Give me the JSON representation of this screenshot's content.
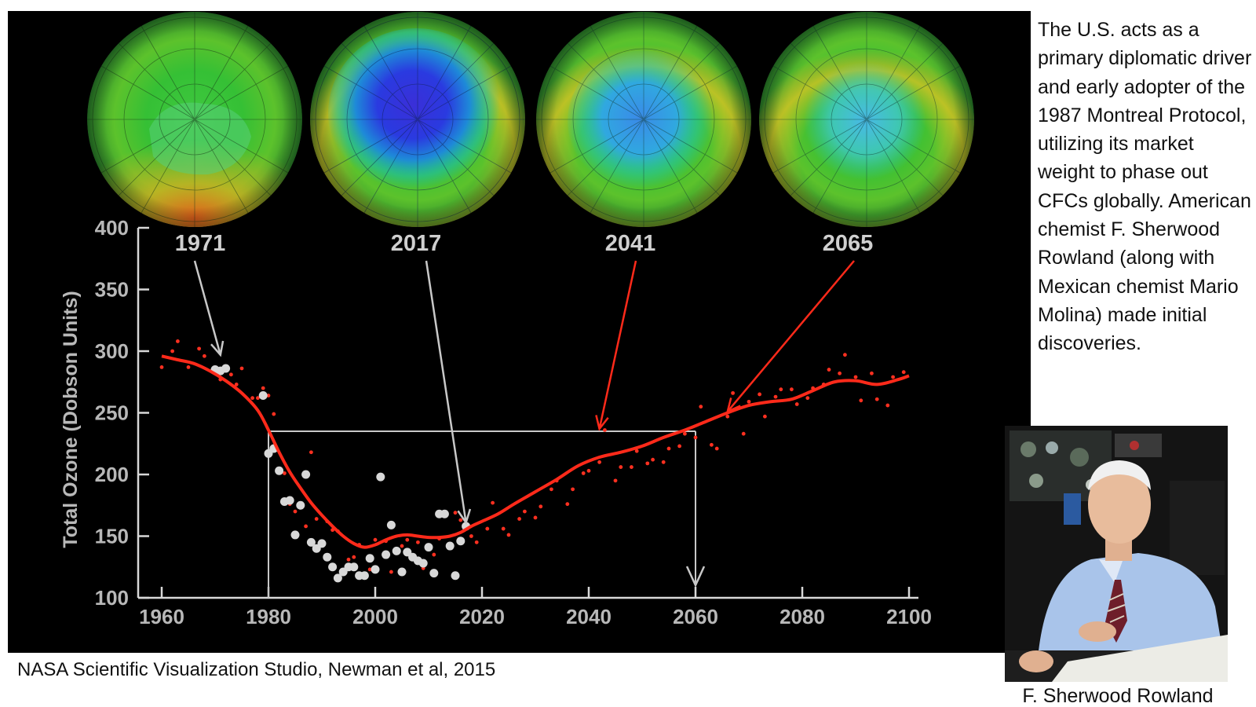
{
  "side_text": "The U.S. acts as a primary diplomatic driver and early adopter of the 1987 Montreal Protocol, utilizing its market weight to phase out CFCs globally. American chemist F. Sherwood Rowland (along with Mexican chemist Mario Molina) made initial discoveries.",
  "credit": "NASA Scientific Visualization Studio, Newman et al, 2015",
  "photo_caption": "F. Sherwood Rowland",
  "globes": [
    {
      "year": "1971",
      "hole": "none"
    },
    {
      "year": "2017",
      "hole": "deep"
    },
    {
      "year": "2041",
      "hole": "moderate"
    },
    {
      "year": "2065",
      "hole": "mild"
    }
  ],
  "colors": {
    "model_line": "#ff2a1a",
    "observed_points": "#d8d8d8",
    "model_points": "#ff3020",
    "annotation_line": "#c8c8c8",
    "red_arrow": "#ff2a1a"
  },
  "chart_data": {
    "type": "scatter",
    "ylabel": "Total Ozone (Dobson Units)",
    "xlabel": "",
    "xlim": [
      1958,
      2102
    ],
    "ylim": [
      100,
      400
    ],
    "xticks": [
      "1960",
      "1980",
      "2000",
      "2020",
      "2040",
      "2060",
      "2080",
      "2100"
    ],
    "yticks": [
      "100",
      "150",
      "200",
      "250",
      "300",
      "350",
      "400"
    ],
    "series": [
      {
        "kind": "line",
        "x": [
          1960,
          1963,
          1966,
          1969,
          1972,
          1975,
          1978,
          1980,
          1982,
          1984,
          1986,
          1988,
          1990,
          1992,
          1994,
          1996,
          1998,
          2000,
          2002,
          2004,
          2006,
          2008,
          2010,
          2012,
          2014,
          2016,
          2018,
          2020,
          2023,
          2026,
          2030,
          2034,
          2038,
          2042,
          2046,
          2050,
          2054,
          2058,
          2062,
          2066,
          2070,
          2074,
          2078,
          2082,
          2086,
          2090,
          2094,
          2098,
          2100
        ],
        "y": [
          296,
          293,
          290,
          284,
          276,
          266,
          252,
          236,
          218,
          202,
          189,
          177,
          167,
          158,
          150,
          144,
          141,
          143,
          147,
          150,
          151,
          150,
          149,
          149,
          150,
          153,
          158,
          162,
          168,
          176,
          186,
          196,
          207,
          214,
          218,
          223,
          230,
          236,
          243,
          250,
          256,
          259,
          261,
          268,
          275,
          276,
          273,
          277,
          280
        ]
      },
      {
        "kind": "observed",
        "x": [
          1970,
          1971,
          1972,
          1979,
          1980,
          1981,
          1982,
          1983,
          1984,
          1985,
          1986,
          1987,
          1988,
          1989,
          1990,
          1991,
          1992,
          1993,
          1994,
          1995,
          1996,
          1997,
          1998,
          1999,
          2000,
          2001,
          2002,
          2003,
          2004,
          2005,
          2006,
          2007,
          2008,
          2009,
          2010,
          2011,
          2012,
          2013,
          2014,
          2015,
          2016,
          2017
        ],
        "y": [
          285,
          284,
          286,
          264,
          217,
          221,
          203,
          178,
          179,
          151,
          175,
          200,
          145,
          140,
          144,
          133,
          125,
          116,
          121,
          125,
          125,
          118,
          118,
          132,
          123,
          198,
          135,
          159,
          138,
          121,
          137,
          133,
          130,
          128,
          141,
          120,
          168,
          168,
          142,
          118,
          146,
          158
        ]
      },
      {
        "kind": "model-points",
        "x": [
          1960,
          1962,
          1963,
          1965,
          1967,
          1968,
          1970,
          1971,
          1973,
          1974,
          1975,
          1977,
          1978,
          1979,
          1980,
          1981,
          1983,
          1984,
          1985,
          1987,
          1988,
          1989,
          1991,
          1992,
          1993,
          1995,
          1996,
          1997,
          1999,
          2000,
          2002,
          2003,
          2005,
          2006,
          2008,
          2009,
          2011,
          2012,
          2013,
          2015,
          2016,
          2018,
          2019,
          2021,
          2022,
          2024,
          2025,
          2027,
          2028,
          2030,
          2031,
          2033,
          2034,
          2036,
          2037,
          2039,
          2040,
          2042,
          2043,
          2045,
          2046,
          2048,
          2049,
          2051,
          2052,
          2054,
          2055,
          2057,
          2058,
          2060,
          2061,
          2063,
          2064,
          2066,
          2067,
          2069,
          2070,
          2072,
          2073,
          2075,
          2076,
          2078,
          2079,
          2081,
          2082,
          2084,
          2085,
          2087,
          2088,
          2090,
          2091,
          2093,
          2094,
          2096,
          2097,
          2099
        ],
        "y": [
          287,
          300,
          308,
          287,
          302,
          296,
          286,
          277,
          281,
          273,
          286,
          262,
          262,
          270,
          264,
          249,
          201,
          176,
          170,
          158,
          218,
          164,
          162,
          155,
          154,
          131,
          133,
          143,
          123,
          147,
          146,
          121,
          142,
          147,
          145,
          124,
          135,
          148,
          168,
          169,
          163,
          150,
          145,
          156,
          177,
          156,
          151,
          164,
          170,
          165,
          174,
          188,
          195,
          176,
          188,
          201,
          203,
          210,
          236,
          195,
          206,
          206,
          219,
          209,
          212,
          210,
          221,
          223,
          233,
          230,
          255,
          224,
          221,
          247,
          266,
          233,
          259,
          265,
          247,
          263,
          269,
          269,
          257,
          262,
          270,
          273,
          285,
          282,
          297,
          279,
          260,
          282,
          261,
          256,
          279,
          283
        ]
      }
    ],
    "annotations": {
      "threshold_line": {
        "y": 235,
        "from_x": 1980,
        "to_x": 2060
      },
      "drop_lines_x": [
        1980,
        2060
      ],
      "globe_year_arrows": [
        {
          "year": "1971",
          "x": 1971,
          "y": 297,
          "color": "gray"
        },
        {
          "year": "2017",
          "x": 2017,
          "y": 161,
          "color": "gray"
        },
        {
          "year": "2041",
          "x": 2042,
          "y": 237,
          "color": "red"
        },
        {
          "year": "2065",
          "x": 2066,
          "y": 251,
          "color": "red"
        }
      ]
    }
  }
}
